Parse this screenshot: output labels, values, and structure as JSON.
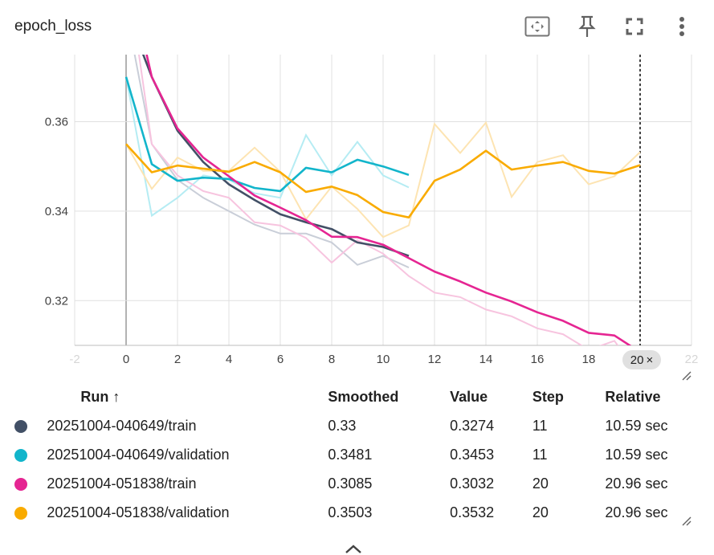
{
  "card": {
    "title": "epoch_loss",
    "buttons": [
      {
        "name": "fit-domain-icon"
      },
      {
        "name": "pin-icon"
      },
      {
        "name": "fullscreen-icon"
      },
      {
        "name": "more-vert-icon"
      }
    ]
  },
  "chart_data": {
    "type": "line",
    "title": "epoch_loss",
    "xlabel": "",
    "ylabel": "",
    "xlim": [
      -2,
      22
    ],
    "ylim": [
      0.31,
      0.375
    ],
    "xticks": [
      -2,
      0,
      2,
      4,
      6,
      8,
      10,
      12,
      14,
      16,
      18,
      20,
      22
    ],
    "yticks": [
      0.32,
      0.34,
      0.36
    ],
    "grid": true,
    "cursor_step": 20,
    "series": [
      {
        "name": "20251004-040649/train",
        "color": "#425066",
        "raw_color": "#c9ced8",
        "x": [
          0,
          1,
          2,
          3,
          4,
          5,
          6,
          7,
          8,
          9,
          10,
          11
        ],
        "raw": [
          0.385,
          0.355,
          0.347,
          0.343,
          0.34,
          0.337,
          0.335,
          0.335,
          0.333,
          0.328,
          0.33,
          0.3274
        ],
        "smoothed": [
          0.385,
          0.37,
          0.358,
          0.351,
          0.346,
          0.3425,
          0.3393,
          0.3375,
          0.336,
          0.333,
          0.332,
          0.33
        ]
      },
      {
        "name": "20251004-040649/validation",
        "color": "#12b5cb",
        "raw_color": "#b5ecf3",
        "x": [
          0,
          1,
          2,
          3,
          4,
          5,
          6,
          7,
          8,
          9,
          10,
          11
        ],
        "raw": [
          0.37,
          0.339,
          0.343,
          0.348,
          0.347,
          0.344,
          0.343,
          0.357,
          0.348,
          0.3555,
          0.348,
          0.3453
        ],
        "smoothed": [
          0.37,
          0.3505,
          0.3468,
          0.3475,
          0.3472,
          0.3452,
          0.3445,
          0.3497,
          0.3487,
          0.3515,
          0.35,
          0.3481
        ]
      },
      {
        "name": "20251004-051838/train",
        "color": "#e52592",
        "raw_color": "#f7c4df",
        "x": [
          0,
          1,
          2,
          3,
          4,
          5,
          6,
          7,
          8,
          9,
          10,
          11,
          12,
          13,
          14,
          15,
          16,
          17,
          18,
          19,
          20
        ],
        "raw": [
          0.395,
          0.355,
          0.348,
          0.3445,
          0.343,
          0.3375,
          0.3368,
          0.334,
          0.3285,
          0.3335,
          0.3305,
          0.3255,
          0.3218,
          0.3208,
          0.318,
          0.3165,
          0.3138,
          0.3125,
          0.309,
          0.311,
          0.3032
        ],
        "smoothed": [
          0.395,
          0.37,
          0.3585,
          0.352,
          0.3478,
          0.3435,
          0.3408,
          0.338,
          0.3343,
          0.3342,
          0.3325,
          0.3295,
          0.3265,
          0.3243,
          0.3218,
          0.3198,
          0.3174,
          0.3155,
          0.3128,
          0.3122,
          0.3085
        ]
      },
      {
        "name": "20251004-051838/validation",
        "color": "#f9ab00",
        "raw_color": "#fde4b2",
        "x": [
          0,
          1,
          2,
          3,
          4,
          5,
          6,
          7,
          8,
          9,
          10,
          11,
          12,
          13,
          14,
          15,
          16,
          17,
          18,
          19,
          20
        ],
        "raw": [
          0.355,
          0.345,
          0.352,
          0.349,
          0.349,
          0.3542,
          0.3488,
          0.3382,
          0.3455,
          0.3405,
          0.3342,
          0.3368,
          0.3595,
          0.353,
          0.3598,
          0.3432,
          0.351,
          0.3525,
          0.346,
          0.3478,
          0.3532
        ],
        "smoothed": [
          0.355,
          0.3487,
          0.3502,
          0.3495,
          0.3488,
          0.351,
          0.3487,
          0.3443,
          0.3455,
          0.3436,
          0.3398,
          0.3386,
          0.3468,
          0.3493,
          0.3535,
          0.3493,
          0.3502,
          0.351,
          0.349,
          0.3484,
          0.3503
        ]
      }
    ]
  },
  "cursor_badge": {
    "label": "20",
    "close": "×"
  },
  "table": {
    "headers": {
      "run": "Run ↑",
      "smoothed": "Smoothed",
      "value": "Value",
      "step": "Step",
      "relative": "Relative"
    },
    "rows": [
      {
        "color": "#425066",
        "run": "20251004-040649/train",
        "smoothed": "0.33",
        "value": "0.3274",
        "step": "11",
        "relative": "10.59 sec"
      },
      {
        "color": "#12b5cb",
        "run": "20251004-040649/validation",
        "smoothed": "0.3481",
        "value": "0.3453",
        "step": "11",
        "relative": "10.59 sec"
      },
      {
        "color": "#e52592",
        "run": "20251004-051838/train",
        "smoothed": "0.3085",
        "value": "0.3032",
        "step": "20",
        "relative": "20.96 sec"
      },
      {
        "color": "#f9ab00",
        "run": "20251004-051838/validation",
        "smoothed": "0.3503",
        "value": "0.3532",
        "step": "20",
        "relative": "20.96 sec"
      }
    ]
  }
}
